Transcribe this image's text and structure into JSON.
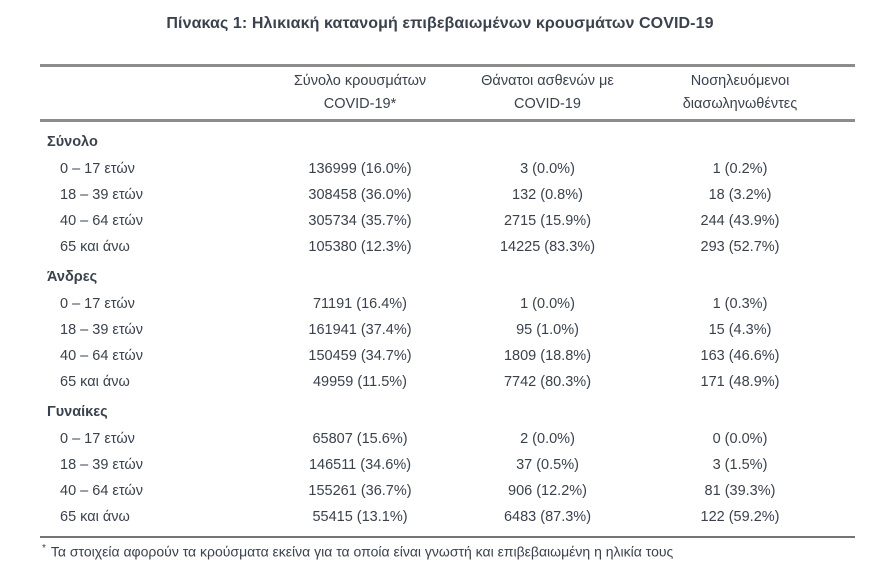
{
  "title": "Πίνακας 1: Ηλικιακή κατανομή επιβεβαιωμένων κρουσμάτων COVID-19",
  "table": {
    "columns": [
      {
        "line1": "Σύνολο κρουσμάτων",
        "line2": "COVID-19*"
      },
      {
        "line1": "Θάνατοι ασθενών με",
        "line2": "COVID-19"
      },
      {
        "line1": "Νοσηλευόμενοι",
        "line2": "διασωληνωθέντες"
      }
    ],
    "sections": [
      {
        "label": "Σύνολο",
        "rows": [
          {
            "age": "0 – 17 ετών",
            "cases": "136999 (16.0%)",
            "deaths": "3 (0.0%)",
            "intubated": "1 (0.2%)"
          },
          {
            "age": "18 – 39 ετών",
            "cases": "308458 (36.0%)",
            "deaths": "132 (0.8%)",
            "intubated": "18 (3.2%)"
          },
          {
            "age": "40 – 64 ετών",
            "cases": "305734 (35.7%)",
            "deaths": "2715 (15.9%)",
            "intubated": "244 (43.9%)"
          },
          {
            "age": "65 και άνω",
            "cases": "105380 (12.3%)",
            "deaths": "14225 (83.3%)",
            "intubated": "293 (52.7%)"
          }
        ]
      },
      {
        "label": "Άνδρες",
        "rows": [
          {
            "age": "0 – 17 ετών",
            "cases": "71191 (16.4%)",
            "deaths": "1 (0.0%)",
            "intubated": "1 (0.3%)"
          },
          {
            "age": "18 – 39 ετών",
            "cases": "161941 (37.4%)",
            "deaths": "95 (1.0%)",
            "intubated": "15 (4.3%)"
          },
          {
            "age": "40 – 64 ετών",
            "cases": "150459 (34.7%)",
            "deaths": "1809 (18.8%)",
            "intubated": "163 (46.6%)"
          },
          {
            "age": "65 και άνω",
            "cases": "49959 (11.5%)",
            "deaths": "7742 (80.3%)",
            "intubated": "171 (48.9%)"
          }
        ]
      },
      {
        "label": "Γυναίκες",
        "rows": [
          {
            "age": "0 – 17 ετών",
            "cases": "65807 (15.6%)",
            "deaths": "2 (0.0%)",
            "intubated": "0 (0.0%)"
          },
          {
            "age": "18 – 39 ετών",
            "cases": "146511 (34.6%)",
            "deaths": "37 (0.5%)",
            "intubated": "3 (1.5%)"
          },
          {
            "age": "40 – 64 ετών",
            "cases": "155261 (36.7%)",
            "deaths": "906 (12.2%)",
            "intubated": "81 (39.3%)"
          },
          {
            "age": "65 και άνω",
            "cases": "55415 (13.1%)",
            "deaths": "6483 (87.3%)",
            "intubated": "122 (59.2%)"
          }
        ]
      }
    ],
    "footnote_marker": "*",
    "footnote": "Τα στοιχεία αφορούν τα κρούσματα εκείνα για τα οποία είναι γνωστή και επιβεβαιωμένη η ηλικία τους"
  },
  "colors": {
    "text": "#3a424e",
    "rule_gray": "#8c8c8c",
    "rule_dark": "#757575",
    "background": "#ffffff"
  }
}
